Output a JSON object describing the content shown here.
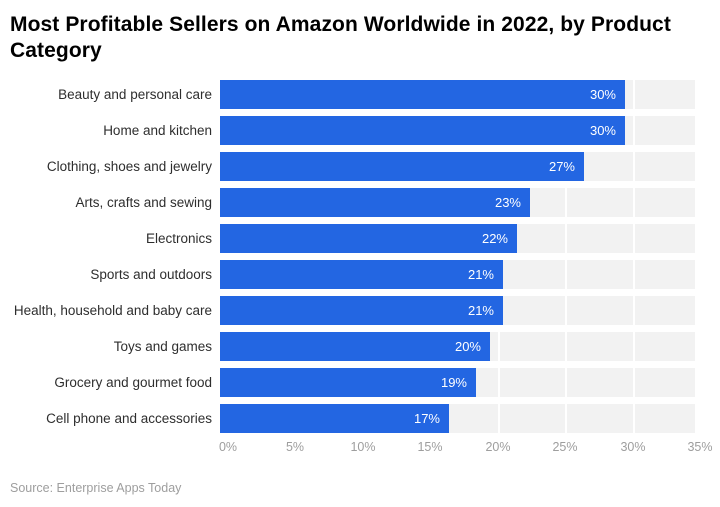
{
  "page": {
    "title": "Most Profitable Sellers on Amazon Worldwide in 2022, by Product Category",
    "source": "Source: Enterprise Apps Today"
  },
  "colors": {
    "title": "#000000",
    "label": "#2e2e2e",
    "bar": "#2366e2",
    "track": "#f2f2f2",
    "value": "#ffffff",
    "axis": "#9e9e9e"
  },
  "chart_data": {
    "type": "bar",
    "orientation": "horizontal",
    "title": "Most Profitable Sellers on Amazon Worldwide in 2022, by Product Category",
    "categories": [
      "Beauty and personal care",
      "Home and kitchen",
      "Clothing, shoes and jewelry",
      "Arts, crafts and sewing",
      "Electronics",
      "Sports and outdoors",
      "Health, household and baby care",
      "Toys and games",
      "Grocery and gourmet food",
      "Cell phone and accessories"
    ],
    "values": [
      30,
      30,
      27,
      23,
      22,
      21,
      21,
      20,
      19,
      17
    ],
    "value_suffix": "%",
    "xlabel": "",
    "ylabel": "",
    "xlim": [
      0,
      35
    ],
    "x_ticks": [
      "0%",
      "5%",
      "10%",
      "15%",
      "20%",
      "25%",
      "30%",
      "35%"
    ],
    "grid": true,
    "legend": false,
    "source": "Source: Enterprise Apps Today"
  }
}
